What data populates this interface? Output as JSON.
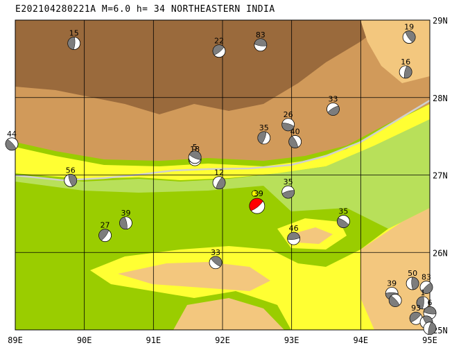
{
  "title": "E202104280221A M=6.0 h= 34 NORTHEASTERN INDIA",
  "map": {
    "lon_range": [
      89,
      95
    ],
    "lat_range": [
      25,
      29
    ],
    "lon_labels": [
      "89E",
      "90E",
      "91E",
      "92E",
      "93E",
      "94E",
      "95E"
    ],
    "lat_labels": [
      "29N",
      "28N",
      "27N",
      "26N",
      "25N"
    ],
    "colors": {
      "plain": "#9acd00",
      "low": "#b8e05a",
      "mid": "#ffff33",
      "hill": "#f3c77e",
      "upland": "#d19a5a",
      "mountain": "#9a6a3c",
      "border": "#cfcfcf",
      "main_event": "#ff0000",
      "grid": "#000000"
    }
  },
  "main_event": {
    "lon": 92.5,
    "lat": 26.6,
    "depth_label": "39"
  },
  "mechanisms": [
    {
      "lon": 88.95,
      "lat": 27.4,
      "label": "44"
    },
    {
      "lon": 89.85,
      "lat": 28.7,
      "label": "15"
    },
    {
      "lon": 91.95,
      "lat": 28.6,
      "label": "22"
    },
    {
      "lon": 92.55,
      "lat": 28.68,
      "label": "83"
    },
    {
      "lon": 94.7,
      "lat": 28.78,
      "label": "19"
    },
    {
      "lon": 94.65,
      "lat": 28.33,
      "label": "16"
    },
    {
      "lon": 93.6,
      "lat": 27.85,
      "label": "33"
    },
    {
      "lon": 92.95,
      "lat": 27.65,
      "label": "26"
    },
    {
      "lon": 93.05,
      "lat": 27.43,
      "label": "40"
    },
    {
      "lon": 92.6,
      "lat": 27.48,
      "label": "35"
    },
    {
      "lon": 91.6,
      "lat": 27.2,
      "label": "18"
    },
    {
      "lon": 91.6,
      "lat": 27.23,
      "label": "5"
    },
    {
      "lon": 89.8,
      "lat": 26.93,
      "label": "56"
    },
    {
      "lon": 91.95,
      "lat": 26.9,
      "label": "12"
    },
    {
      "lon": 92.95,
      "lat": 26.78,
      "label": "35"
    },
    {
      "lon": 93.75,
      "lat": 26.4,
      "label": "35"
    },
    {
      "lon": 90.6,
      "lat": 26.38,
      "label": "39"
    },
    {
      "lon": 90.3,
      "lat": 26.22,
      "label": "27"
    },
    {
      "lon": 93.03,
      "lat": 26.18,
      "label": "46"
    },
    {
      "lon": 91.9,
      "lat": 25.87,
      "label": "33"
    },
    {
      "lon": 94.75,
      "lat": 25.6,
      "label": "50"
    },
    {
      "lon": 94.95,
      "lat": 25.55,
      "label": "83"
    },
    {
      "lon": 94.45,
      "lat": 25.47,
      "label": "39"
    },
    {
      "lon": 94.5,
      "lat": 25.38,
      "label": ""
    },
    {
      "lon": 94.9,
      "lat": 25.35,
      "label": "1"
    },
    {
      "lon": 94.8,
      "lat": 25.15,
      "label": "93"
    },
    {
      "lon": 95.0,
      "lat": 25.22,
      "label": "6"
    },
    {
      "lon": 94.95,
      "lat": 25.1,
      "label": ""
    },
    {
      "lon": 95.0,
      "lat": 25.02,
      "label": ""
    }
  ]
}
